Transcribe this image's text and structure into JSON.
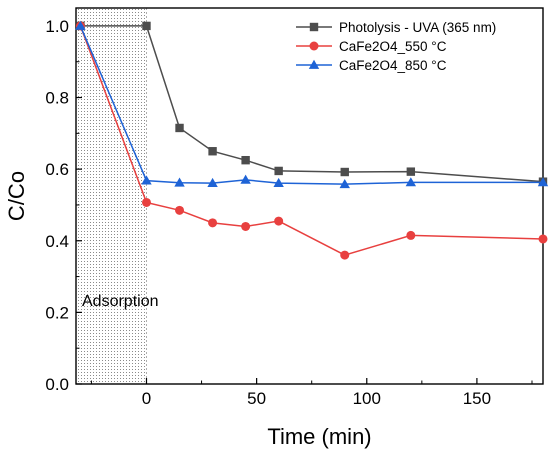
{
  "chart_data": {
    "type": "line",
    "xlabel": "Time (min)",
    "ylabel": "C/Co",
    "xlim": [
      -32,
      180
    ],
    "ylim": [
      0,
      1.05
    ],
    "xticks": [
      0,
      50,
      100,
      150
    ],
    "yticks": [
      0.0,
      0.2,
      0.4,
      0.6,
      0.8,
      1.0
    ],
    "grid": false,
    "legend_position": "top-right",
    "annotation": {
      "label": "Adsorption",
      "x_range": [
        -30,
        0
      ]
    },
    "series": [
      {
        "name": "Photolysis - UVA (365 nm)",
        "color": "#4d4d4d",
        "marker": "square",
        "x": [
          -30,
          0,
          15,
          30,
          45,
          60,
          90,
          120,
          180
        ],
        "y": [
          1.0,
          1.0,
          0.715,
          0.65,
          0.625,
          0.595,
          0.592,
          0.593,
          0.565
        ]
      },
      {
        "name": "CaFe2O4_550 °C",
        "color": "#e8403f",
        "marker": "circle",
        "x": [
          -30,
          0,
          15,
          30,
          45,
          60,
          90,
          120,
          180
        ],
        "y": [
          1.0,
          0.507,
          0.485,
          0.45,
          0.44,
          0.455,
          0.36,
          0.415,
          0.405
        ]
      },
      {
        "name": "CaFe2O4_850 °C",
        "color": "#1e63d6",
        "marker": "triangle",
        "x": [
          -30,
          0,
          15,
          30,
          45,
          60,
          90,
          120,
          180
        ],
        "y": [
          1.0,
          0.568,
          0.562,
          0.561,
          0.57,
          0.561,
          0.558,
          0.563,
          0.563
        ]
      }
    ]
  }
}
